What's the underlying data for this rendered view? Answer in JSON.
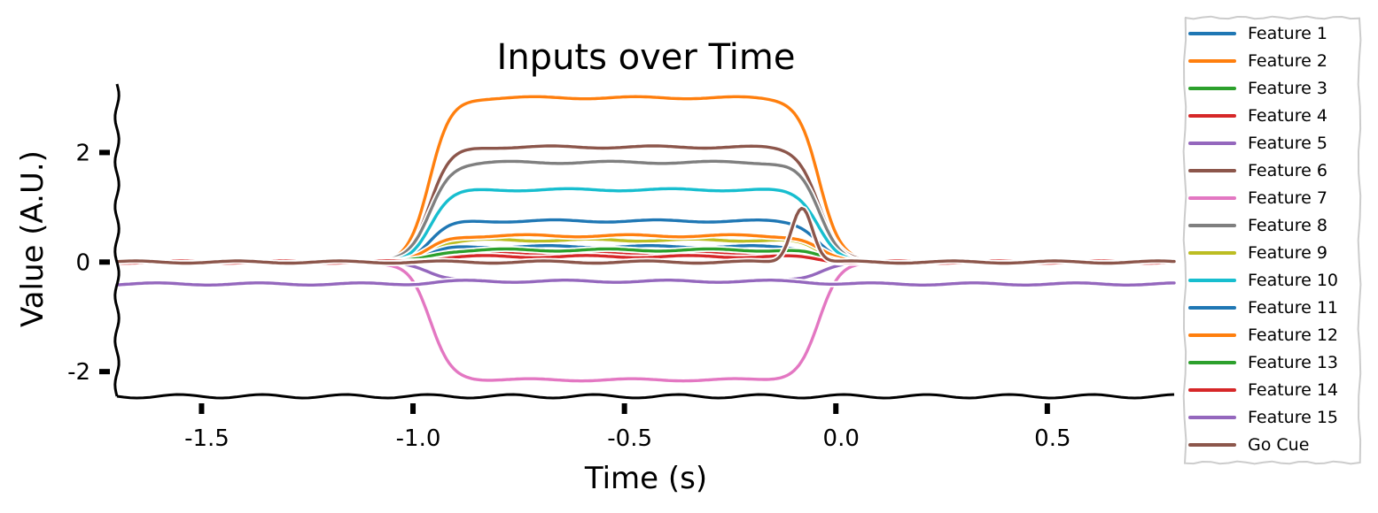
{
  "chart_data": {
    "type": "line",
    "title": "Inputs over Time",
    "xlabel": "Time (s)",
    "ylabel": "Value (A.U.)",
    "xlim": [
      -1.7,
      0.8
    ],
    "ylim": [
      -2.45,
      3.25
    ],
    "xticks": [
      -1.5,
      -1.0,
      -0.5,
      0.0,
      0.5
    ],
    "xtick_labels": [
      "-1.5",
      "-1.0",
      "-0.5",
      "0.0",
      "0.5"
    ],
    "yticks": [
      -2,
      0,
      2
    ],
    "ytick_labels": [
      "-2",
      "0",
      "2"
    ],
    "grid": false,
    "legend_position": "right, outside plot",
    "style": "hand-drawn (xkcd)",
    "stimulus_window": [
      -1.05,
      0.05
    ],
    "series": [
      {
        "name": "Feature 1",
        "color": "#1f77b4",
        "baseline": 0.0,
        "plateau": 0.75
      },
      {
        "name": "Feature 2",
        "color": "#ff7f0e",
        "baseline": 0.0,
        "plateau": 3.0
      },
      {
        "name": "Feature 3",
        "color": "#2ca02c",
        "baseline": 0.0,
        "plateau": 0.25
      },
      {
        "name": "Feature 4",
        "color": "#d62728",
        "baseline": 0.0,
        "plateau": 0.15
      },
      {
        "name": "Feature 5",
        "color": "#9467bd",
        "baseline": 0.0,
        "plateau": -0.35
      },
      {
        "name": "Feature 6",
        "color": "#8c564b",
        "baseline": 0.0,
        "plateau": 2.1
      },
      {
        "name": "Feature 7",
        "color": "#e377c2",
        "baseline": 0.0,
        "plateau": -2.15
      },
      {
        "name": "Feature 8",
        "color": "#7f7f7f",
        "baseline": 0.0,
        "plateau": 1.82
      },
      {
        "name": "Feature 9",
        "color": "#bcbd22",
        "baseline": 0.0,
        "plateau": 0.4
      },
      {
        "name": "Feature 10",
        "color": "#17becf",
        "baseline": 0.0,
        "plateau": 1.32
      },
      {
        "name": "Feature 11",
        "color": "#1f77b4",
        "baseline": 0.0,
        "plateau": 0.28
      },
      {
        "name": "Feature 12",
        "color": "#ff7f0e",
        "baseline": 0.0,
        "plateau": 0.48
      },
      {
        "name": "Feature 13",
        "color": "#2ca02c",
        "baseline": 0.0,
        "plateau": 0.22
      },
      {
        "name": "Feature 14",
        "color": "#d62728",
        "baseline": 0.0,
        "plateau": 0.1
      },
      {
        "name": "Feature 15",
        "color": "#9467bd",
        "baseline": -0.4,
        "plateau": -0.35
      },
      {
        "name": "Go Cue",
        "color": "#8c564b",
        "baseline": 0.0,
        "plateau": 0.0,
        "pulse_center": -0.08,
        "pulse_height": 1.0
      }
    ]
  }
}
